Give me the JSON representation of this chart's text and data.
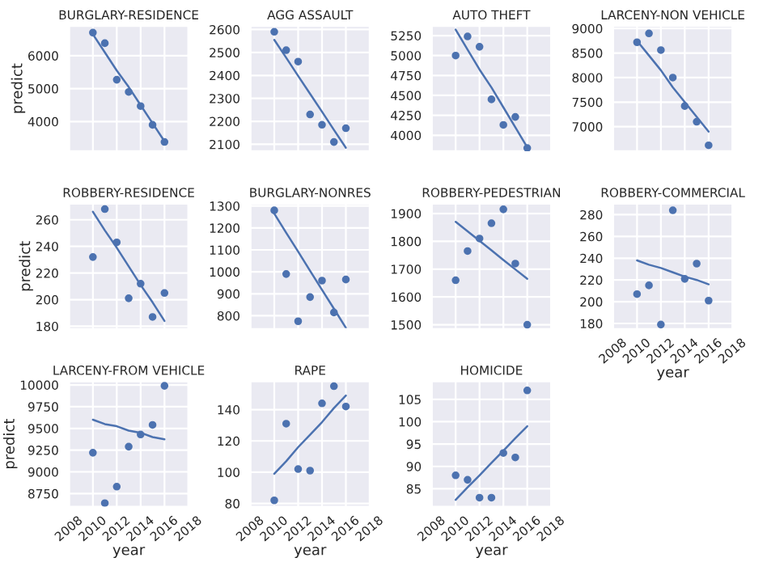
{
  "chart_data": [
    {
      "type": "scatter",
      "title": "BURGLARY-RESIDENCE",
      "ylabel": "predict",
      "x": [
        2010,
        2011,
        2012,
        2013,
        2014,
        2015,
        2016
      ],
      "xlim": [
        2008,
        2018
      ],
      "xticks": [
        2008,
        2010,
        2012,
        2014,
        2016,
        2018
      ],
      "ylim": [
        3100,
        6900
      ],
      "yticks": [
        4000,
        5000,
        6000
      ],
      "grid": true,
      "tick_labels": "y",
      "series": [
        {
          "color": "#4c72b0",
          "marker": "circle",
          "values": [
            6700,
            6380,
            5270,
            4900,
            4470,
            3900,
            3380
          ]
        },
        {
          "type": "line",
          "color": "#4c72b0",
          "values": [
            6650,
            6100,
            5550,
            5050,
            4500,
            3950,
            3400
          ]
        }
      ]
    },
    {
      "type": "scatter",
      "title": "AGG ASSAULT",
      "x": [
        2010,
        2011,
        2012,
        2013,
        2014,
        2015,
        2016
      ],
      "xlim": [
        2008,
        2018
      ],
      "xticks": [
        2008,
        2010,
        2012,
        2014,
        2016,
        2018
      ],
      "ylim": [
        2070,
        2615
      ],
      "yticks": [
        2100,
        2200,
        2300,
        2400,
        2500,
        2600
      ],
      "grid": true,
      "tick_labels": "y",
      "series": [
        {
          "color": "#4c72b0",
          "marker": "circle",
          "values": [
            2590,
            2510,
            2460,
            2230,
            2185,
            2110,
            2170
          ]
        },
        {
          "type": "line",
          "color": "#4c72b0",
          "values": [
            2555,
            2477,
            2398,
            2320,
            2242,
            2163,
            2085
          ]
        }
      ]
    },
    {
      "type": "scatter",
      "title": "AUTO THEFT",
      "x": [
        2010,
        2011,
        2012,
        2013,
        2014,
        2015,
        2016
      ],
      "xlim": [
        2008,
        2018
      ],
      "xticks": [
        2008,
        2010,
        2012,
        2014,
        2016,
        2018
      ],
      "ylim": [
        3800,
        5370
      ],
      "yticks": [
        4000,
        4250,
        4500,
        4750,
        5000,
        5250
      ],
      "grid": true,
      "tick_labels": "y",
      "series": [
        {
          "color": "#4c72b0",
          "marker": "circle",
          "values": [
            5000,
            5240,
            5110,
            4450,
            4130,
            4230,
            3840
          ]
        },
        {
          "type": "line",
          "color": "#4c72b0",
          "values": [
            5325,
            5075,
            4825,
            4600,
            4350,
            4100,
            3850
          ]
        }
      ]
    },
    {
      "type": "scatter",
      "title": "LARCENY-NON VEHICLE",
      "x": [
        2010,
        2011,
        2012,
        2013,
        2014,
        2015,
        2016
      ],
      "xlim": [
        2008,
        2018
      ],
      "xticks": [
        2008,
        2010,
        2012,
        2014,
        2016,
        2018
      ],
      "ylim": [
        6500,
        9050
      ],
      "yticks": [
        7000,
        7500,
        8000,
        8500,
        9000
      ],
      "grid": true,
      "tick_labels": "y",
      "series": [
        {
          "color": "#4c72b0",
          "marker": "circle",
          "values": [
            8720,
            8900,
            8560,
            8000,
            7420,
            7100,
            6620
          ]
        },
        {
          "type": "line",
          "color": "#4c72b0",
          "values": [
            8750,
            8450,
            8150,
            7800,
            7500,
            7200,
            6900
          ]
        }
      ]
    },
    {
      "type": "scatter",
      "title": "ROBBERY-RESIDENCE",
      "ylabel": "predict",
      "x": [
        2010,
        2011,
        2012,
        2013,
        2014,
        2015,
        2016
      ],
      "xlim": [
        2008,
        2018
      ],
      "xticks": [
        2008,
        2010,
        2012,
        2014,
        2016,
        2018
      ],
      "ylim": [
        178,
        272
      ],
      "yticks": [
        180,
        200,
        220,
        240,
        260
      ],
      "grid": true,
      "tick_labels": "y",
      "series": [
        {
          "color": "#4c72b0",
          "marker": "circle",
          "values": [
            232,
            268,
            243,
            201,
            212,
            187,
            205
          ]
        },
        {
          "type": "line",
          "color": "#4c72b0",
          "values": [
            266,
            252,
            239,
            225,
            211,
            198,
            184
          ]
        }
      ]
    },
    {
      "type": "scatter",
      "title": "BURGLARY-NONRES",
      "x": [
        2010,
        2011,
        2012,
        2013,
        2014,
        2015,
        2016
      ],
      "xlim": [
        2008,
        2018
      ],
      "xticks": [
        2008,
        2010,
        2012,
        2014,
        2016,
        2018
      ],
      "ylim": [
        740,
        1310
      ],
      "yticks": [
        800,
        900,
        1000,
        1100,
        1200,
        1300
      ],
      "grid": true,
      "tick_labels": "y",
      "series": [
        {
          "color": "#4c72b0",
          "marker": "circle",
          "values": [
            1280,
            990,
            775,
            885,
            960,
            815,
            965
          ]
        },
        {
          "type": "line",
          "color": "#4c72b0",
          "values": [
            1265,
            1178,
            1092,
            1005,
            918,
            832,
            745
          ]
        }
      ]
    },
    {
      "type": "scatter",
      "title": "ROBBERY-PEDESTRIAN",
      "x": [
        2010,
        2011,
        2012,
        2013,
        2014,
        2015,
        2016
      ],
      "xlim": [
        2008,
        2018
      ],
      "xticks": [
        2008,
        2010,
        2012,
        2014,
        2016,
        2018
      ],
      "ylim": [
        1485,
        1935
      ],
      "yticks": [
        1500,
        1600,
        1700,
        1800,
        1900
      ],
      "grid": true,
      "tick_labels": "y",
      "series": [
        {
          "color": "#4c72b0",
          "marker": "circle",
          "values": [
            1660,
            1765,
            1810,
            1865,
            1915,
            1720,
            1500
          ]
        },
        {
          "type": "line",
          "color": "#4c72b0",
          "values": [
            1870,
            1836,
            1802,
            1768,
            1733,
            1699,
            1665
          ]
        }
      ]
    },
    {
      "type": "scatter",
      "title": "ROBBERY-COMMERCIAL",
      "xlabel": "year",
      "x": [
        2010,
        2011,
        2012,
        2013,
        2014,
        2015,
        2016
      ],
      "xlim": [
        2008,
        2018
      ],
      "xticks": [
        2008,
        2010,
        2012,
        2014,
        2016,
        2018
      ],
      "ylim": [
        175,
        290
      ],
      "yticks": [
        180,
        200,
        220,
        240,
        260,
        280
      ],
      "grid": true,
      "series": [
        {
          "color": "#4c72b0",
          "marker": "circle",
          "values": [
            207,
            215,
            179,
            284,
            221,
            235,
            201
          ]
        },
        {
          "type": "line",
          "color": "#4c72b0",
          "values": [
            238,
            234,
            231,
            227,
            223,
            220,
            216
          ]
        }
      ]
    },
    {
      "type": "scatter",
      "title": "LARCENY-FROM VEHICLE",
      "xlabel": "year",
      "ylabel": "predict",
      "x": [
        2010,
        2011,
        2012,
        2013,
        2014,
        2015,
        2016
      ],
      "xlim": [
        2008,
        2018
      ],
      "xticks": [
        2008,
        2010,
        2012,
        2014,
        2016,
        2018
      ],
      "ylim": [
        8600,
        10040
      ],
      "yticks": [
        8750,
        9000,
        9250,
        9500,
        9750,
        10000
      ],
      "grid": true,
      "series": [
        {
          "color": "#4c72b0",
          "marker": "circle",
          "values": [
            9220,
            8640,
            8830,
            9290,
            9430,
            9540,
            9990
          ]
        },
        {
          "type": "line",
          "color": "#4c72b0",
          "values": [
            9600,
            9550,
            9525,
            9475,
            9450,
            9400,
            9375
          ]
        }
      ]
    },
    {
      "type": "scatter",
      "title": "RAPE",
      "xlabel": "year",
      "x": [
        2010,
        2011,
        2012,
        2013,
        2014,
        2015,
        2016
      ],
      "xlim": [
        2008,
        2018
      ],
      "xticks": [
        2008,
        2010,
        2012,
        2014,
        2016,
        2018
      ],
      "ylim": [
        78,
        158
      ],
      "yticks": [
        80,
        100,
        120,
        140
      ],
      "grid": true,
      "series": [
        {
          "color": "#4c72b0",
          "marker": "circle",
          "values": [
            82,
            131,
            102,
            101,
            144,
            155,
            142
          ]
        },
        {
          "type": "line",
          "color": "#4c72b0",
          "values": [
            99,
            107,
            116,
            124,
            132,
            141,
            149
          ]
        }
      ]
    },
    {
      "type": "scatter",
      "title": "HOMICIDE",
      "xlabel": "year",
      "x": [
        2010,
        2011,
        2012,
        2013,
        2014,
        2015,
        2016
      ],
      "xlim": [
        2008,
        2018
      ],
      "xticks": [
        2008,
        2010,
        2012,
        2014,
        2016,
        2018
      ],
      "ylim": [
        81,
        109
      ],
      "yticks": [
        85,
        90,
        95,
        100,
        105
      ],
      "grid": true,
      "series": [
        {
          "color": "#4c72b0",
          "marker": "circle",
          "values": [
            88,
            87,
            83,
            83,
            93,
            92,
            107
          ]
        },
        {
          "type": "line",
          "color": "#4c72b0",
          "values": [
            82.5,
            85.3,
            88,
            90.8,
            93.5,
            96.3,
            99
          ]
        }
      ]
    }
  ]
}
